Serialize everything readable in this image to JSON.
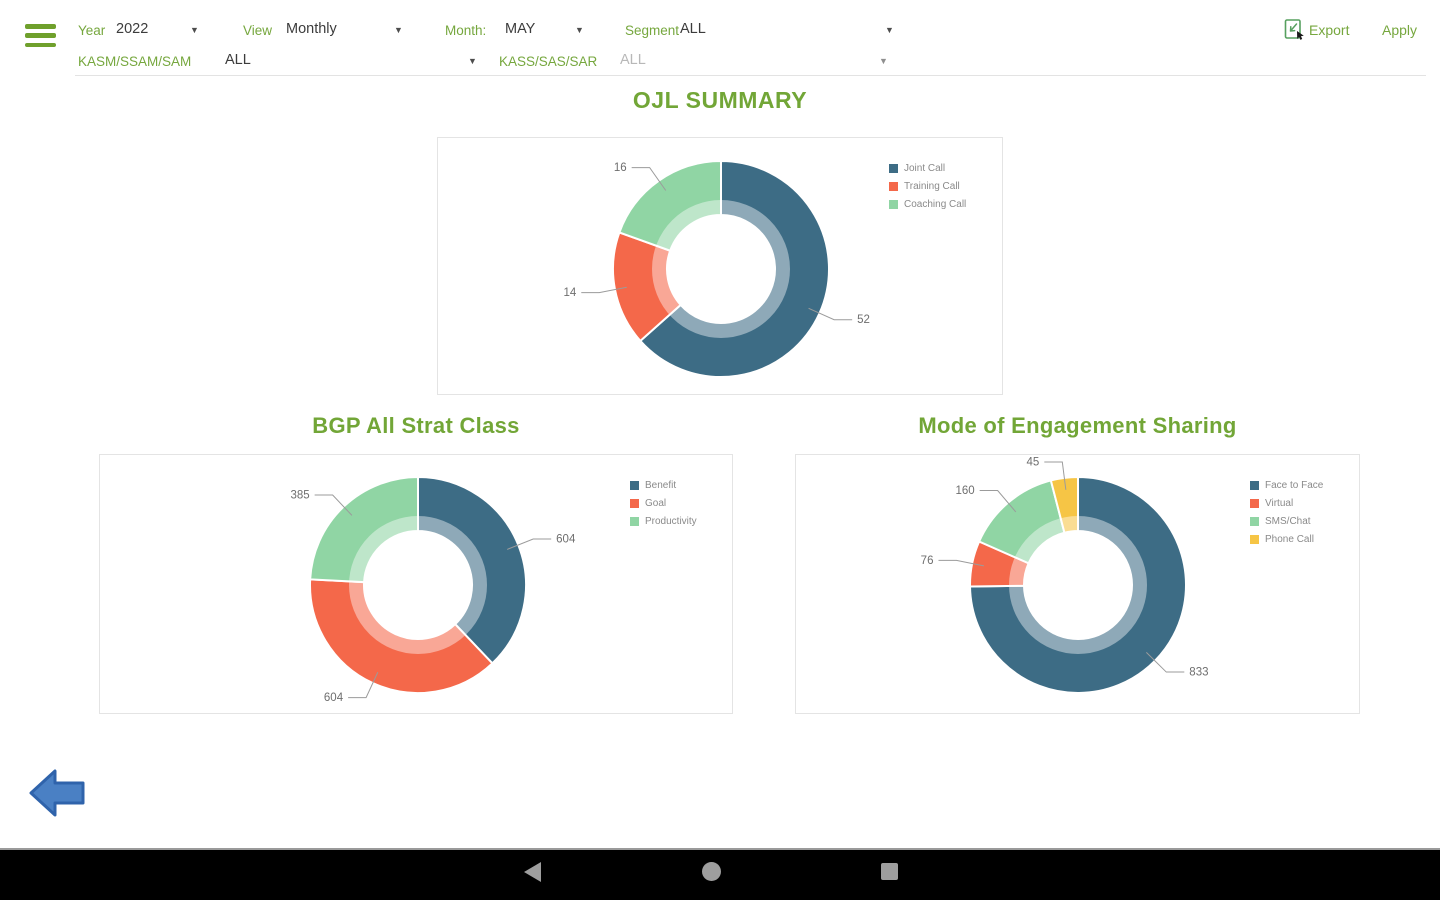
{
  "app": {
    "accent_green": "#72a637",
    "back_arrow_blue": "#4a80c4",
    "navbar_background": "#000000",
    "donut_palette": [
      "#3d6c85",
      "#f4684a",
      "#90d5a4",
      "#f6c545"
    ]
  },
  "topbar": {
    "menu_icon": "hamburger-menu",
    "filters_row1": [
      {
        "label": "Year",
        "value": "2022"
      },
      {
        "label": "View",
        "value": "Monthly"
      },
      {
        "label": "Month:",
        "value": "MAY"
      },
      {
        "label": "Segment",
        "value": "ALL"
      }
    ],
    "filters_row2": [
      {
        "label": "KASM/SSAM/SAM",
        "value": "ALL"
      },
      {
        "label": "KASS/SAS/SAR",
        "value": "ALL"
      }
    ],
    "export_label": "Export",
    "apply_label": "Apply",
    "export_icon": "excel-export-icon"
  },
  "page_title": "OJL SUMMARY",
  "chart_data": [
    {
      "type": "pie",
      "subtype": "donut",
      "title": "OJL SUMMARY",
      "categories": [
        "Joint Call",
        "Training Call",
        "Coaching Call"
      ],
      "values": [
        52,
        14,
        16
      ],
      "colors": [
        "#3d6c85",
        "#f4684a",
        "#90d5a4"
      ],
      "legend_position": "right",
      "start_angle_deg": 0,
      "direction": "clockwise",
      "data_labels": "outside"
    },
    {
      "type": "pie",
      "subtype": "donut",
      "title": "BGP All Strat Class",
      "categories": [
        "Benefit",
        "Goal",
        "Productivity"
      ],
      "values": [
        604,
        604,
        385
      ],
      "colors": [
        "#3d6c85",
        "#f4684a",
        "#90d5a4"
      ],
      "legend_position": "right",
      "start_angle_deg": 0,
      "direction": "clockwise",
      "data_labels": "outside"
    },
    {
      "type": "pie",
      "subtype": "donut",
      "title": "Mode of Engagement Sharing",
      "categories": [
        "Face to Face",
        "Virtual",
        "SMS/Chat",
        "Phone Call"
      ],
      "values": [
        833,
        76,
        160,
        45
      ],
      "colors": [
        "#3d6c85",
        "#f4684a",
        "#90d5a4",
        "#f6c545"
      ],
      "legend_position": "right",
      "start_angle_deg": 0,
      "direction": "clockwise",
      "data_labels": "outside"
    }
  ],
  "footer": {
    "back_icon": "back-arrow"
  },
  "android_nav": {
    "icons": [
      "back-triangle",
      "home-circle",
      "recents-square"
    ]
  }
}
